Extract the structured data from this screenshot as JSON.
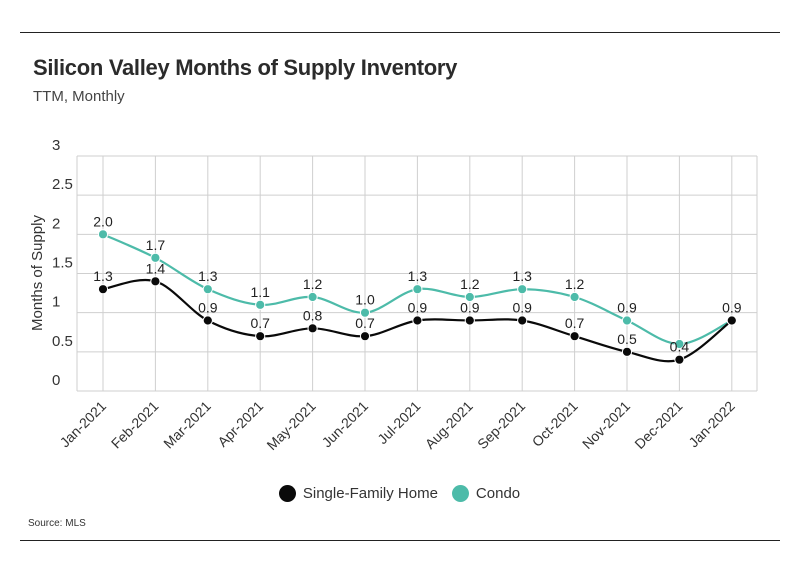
{
  "title": "Silicon Valley Months of Supply Inventory",
  "subtitle": "TTM, Monthly",
  "source": "Source:  MLS",
  "chart_data": {
    "type": "line",
    "ylabel": "Months of Supply",
    "ylim": [
      0,
      3
    ],
    "yticks": [
      "0",
      "0.5",
      "1",
      "1.5",
      "2",
      "2.5",
      "3"
    ],
    "yticks_values": [
      0,
      0.5,
      1,
      1.5,
      2,
      2.5,
      3
    ],
    "grid": true,
    "legend_placement": "bottom",
    "categories": [
      "Jan-2021",
      "Feb-2021",
      "Mar-2021",
      "Apr-2021",
      "May-2021",
      "Jun-2021",
      "Jul-2021",
      "Aug-2021",
      "Sep-2021",
      "Oct-2021",
      "Nov-2021",
      "Dec-2021",
      "Jan-2022"
    ],
    "series": [
      {
        "name": "Single-Family Home",
        "color": "#0a0a0a",
        "values": [
          1.3,
          1.4,
          0.9,
          0.7,
          0.8,
          0.7,
          0.9,
          0.9,
          0.9,
          0.7,
          0.5,
          0.4,
          0.9
        ],
        "labels": [
          "1.3",
          "1.4",
          "0.9",
          "0.7",
          "0.8",
          "0.7",
          "0.9",
          "0.9",
          "0.9",
          "0.7",
          "0.5",
          "0.4",
          ""
        ]
      },
      {
        "name": "Condo",
        "color": "#4dbba9",
        "values": [
          2.0,
          1.7,
          1.3,
          1.1,
          1.2,
          1.0,
          1.3,
          1.2,
          1.3,
          1.2,
          0.9,
          0.6,
          0.9
        ],
        "labels": [
          "2.0",
          "1.7",
          "1.3",
          "1.1",
          "1.2",
          "1.0",
          "1.3",
          "1.2",
          "1.3",
          "1.2",
          "0.9",
          "",
          "0.9"
        ]
      }
    ]
  }
}
